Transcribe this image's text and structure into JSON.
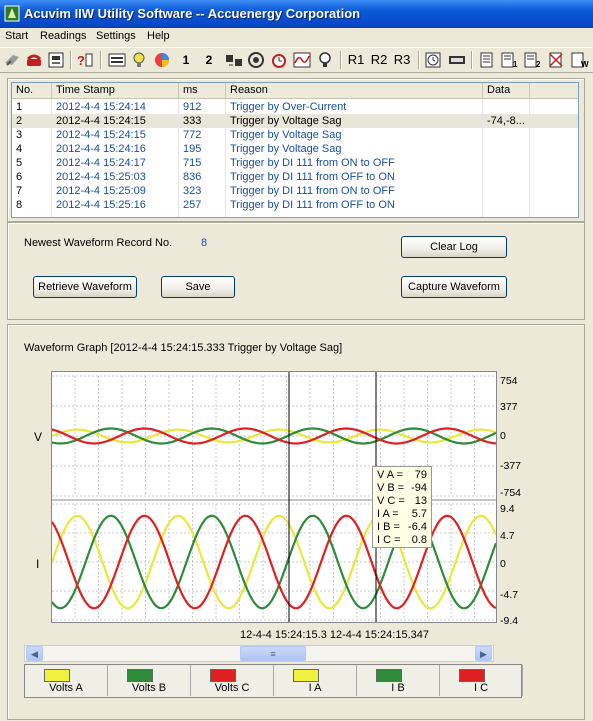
{
  "window": {
    "title": "Acuvim IIW Utility Software -- Accuenergy Corporation"
  },
  "menu": [
    "Start",
    "Readings",
    "Settings",
    "Help"
  ],
  "toolbar": {
    "icons": [
      "connect-icon",
      "phone-icon",
      "device-icon",
      "help-icon",
      "readings-icon",
      "bulb-icon",
      "chart-icon",
      "one-label",
      "two-label",
      "io-icon",
      "target-icon",
      "alarm-icon",
      "graph-icon",
      "lamp-icon",
      "r1",
      "r2",
      "r3",
      "clock-icon",
      "memory-icon",
      "log-icon",
      "log1-icon",
      "log2-icon",
      "clear-log-icon",
      "write-log-icon"
    ],
    "one": "1",
    "two": "2",
    "r1": "R1",
    "r2": "R2",
    "r3": "R3"
  },
  "event_log": {
    "headers": [
      "No.",
      "Time Stamp",
      "ms",
      "Reason",
      "Data"
    ],
    "rows": [
      {
        "no": "1",
        "ts": "2012-4-4 15:24:14",
        "ms": "912",
        "reason": "Trigger by Over-Current",
        "data": ""
      },
      {
        "no": "2",
        "ts": "2012-4-4 15:24:15",
        "ms": "333",
        "reason": "Trigger by Voltage Sag",
        "data": "-74,-8..."
      },
      {
        "no": "3",
        "ts": "2012-4-4 15:24:15",
        "ms": "772",
        "reason": "Trigger by Voltage Sag",
        "data": ""
      },
      {
        "no": "4",
        "ts": "2012-4-4 15:24:16",
        "ms": "195",
        "reason": "Trigger by Voltage Sag",
        "data": ""
      },
      {
        "no": "5",
        "ts": "2012-4-4 15:24:17",
        "ms": "715",
        "reason": "Trigger by DI 111 from ON to OFF",
        "data": ""
      },
      {
        "no": "6",
        "ts": "2012-4-4 15:25:03",
        "ms": "836",
        "reason": "Trigger by DI 111 from OFF to ON",
        "data": ""
      },
      {
        "no": "7",
        "ts": "2012-4-4 15:25:09",
        "ms": "323",
        "reason": "Trigger by DI 111 from ON to OFF",
        "data": ""
      },
      {
        "no": "8",
        "ts": "2012-4-4 15:25:16",
        "ms": "257",
        "reason": "Trigger by DI 111 from OFF to ON",
        "data": ""
      }
    ],
    "selected_row": 2
  },
  "controls": {
    "newest_label": "Newest Waveform Record No.",
    "newest_value": "8",
    "clear_log": "Clear Log",
    "retrieve": "Retrieve Waveform",
    "save": "Save",
    "capture": "Capture Waveform"
  },
  "graph": {
    "title": "Waveform Graph  [2012-4-4 15:24:15.333 Trigger by Voltage Sag]",
    "v_label": "V",
    "i_label": "I",
    "v_ticks": [
      "754",
      "377",
      "0",
      "-377",
      "-754"
    ],
    "i_ticks": [
      "9.4",
      "4.7",
      "0",
      "-4.7",
      "-9.4"
    ],
    "cursor_times": "12-4-4 15:24:15.3 12-4-4 15:24:15.347",
    "cursor_values": [
      {
        "k": "V A =",
        "v": "79"
      },
      {
        "k": "V B =",
        "v": "-94"
      },
      {
        "k": "V C =",
        "v": "13"
      },
      {
        "k": "I A =",
        "v": "5.7"
      },
      {
        "k": "I B =",
        "v": "-6.4"
      },
      {
        "k": "I C =",
        "v": "0.8"
      }
    ]
  },
  "chart_data": {
    "type": "line",
    "panels": [
      {
        "name": "V",
        "ylim": [
          -754,
          754
        ],
        "grid": true
      },
      {
        "name": "I",
        "ylim": [
          -9.4,
          9.4
        ],
        "grid": true
      }
    ],
    "series": [
      {
        "name": "Volts  A",
        "panel": "V",
        "color": "#e8e83a",
        "amplitude": 80,
        "phase_deg": 0
      },
      {
        "name": "Volts  B",
        "panel": "V",
        "color": "#2e8b3a",
        "amplitude": 94,
        "phase_deg": -120
      },
      {
        "name": "Volts  C",
        "panel": "V",
        "color": "#e02020",
        "amplitude": 94,
        "phase_deg": 120
      },
      {
        "name": "I  A",
        "panel": "I",
        "color": "#e8e83a",
        "amplitude": 7.5,
        "phase_deg": 0
      },
      {
        "name": "I  B",
        "panel": "I",
        "color": "#2e8b3a",
        "amplitude": 7.5,
        "phase_deg": -120
      },
      {
        "name": "I  C",
        "panel": "I",
        "color": "#e02020",
        "amplitude": 7.5,
        "phase_deg": 120
      }
    ],
    "cycles": 4.4
  },
  "legend": [
    {
      "label": "Volts  A",
      "color": "#f0f040"
    },
    {
      "label": "Volts  B",
      "color": "#2e8b3a"
    },
    {
      "label": "Volts  C",
      "color": "#e02020"
    },
    {
      "label": "I  A",
      "color": "#f0f040"
    },
    {
      "label": "I  B",
      "color": "#2e8b3a"
    },
    {
      "label": "I  C",
      "color": "#e02020"
    }
  ]
}
